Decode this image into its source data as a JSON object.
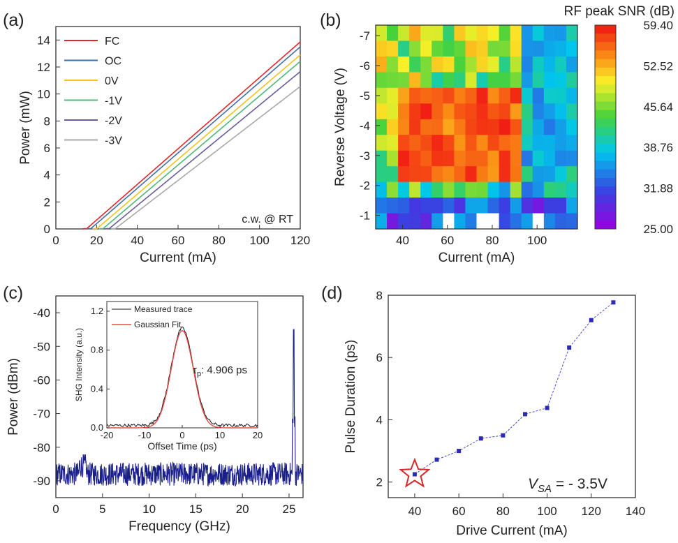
{
  "chart_data": [
    {
      "panel": "(a)",
      "type": "line",
      "xlabel": "Current (mA)",
      "ylabel": "Power (mW)",
      "xlim": [
        0,
        120
      ],
      "ylim": [
        0,
        15
      ],
      "xticks": [
        0,
        20,
        40,
        60,
        80,
        100,
        120
      ],
      "yticks": [
        0,
        2,
        4,
        6,
        8,
        10,
        12,
        14
      ],
      "annotation": "c.w. @ RT",
      "series": [
        {
          "name": "FC",
          "color": "#e8232a",
          "threshold": 15,
          "slope": 0.132
        },
        {
          "name": "OC",
          "color": "#3f6fa8",
          "threshold": 17,
          "slope": 0.131
        },
        {
          "name": "0V",
          "color": "#f2c21b",
          "threshold": 20,
          "slope": 0.129
        },
        {
          "name": "-1V",
          "color": "#4db878",
          "threshold": 23,
          "slope": 0.128
        },
        {
          "name": "-2V",
          "color": "#6b5b9e",
          "threshold": 26,
          "slope": 0.124
        },
        {
          "name": "-3V",
          "color": "#a8a8a8",
          "threshold": 29,
          "slope": 0.116
        }
      ]
    },
    {
      "panel": "(b)",
      "type": "heatmap",
      "title": "RF peak SNR (dB)",
      "xlabel": "Current (mA)",
      "ylabel": "Reverse Voltage (V)",
      "xticks": [
        40,
        60,
        80,
        100
      ],
      "xrange": [
        28,
        118
      ],
      "yticks": [
        -1,
        -2,
        -3,
        -4,
        -5,
        -6,
        -7
      ],
      "yrange": [
        -0.55,
        -7.35
      ],
      "colorbar": {
        "min": 25.0,
        "max": 59.4,
        "ticks": [
          "59.40",
          "52.52",
          "45.64",
          "38.76",
          "31.88",
          "25.00"
        ]
      }
    },
    {
      "panel": "(c)",
      "type": "line",
      "xlabel": "Frequency (GHz)",
      "ylabel": "Power (dBm)",
      "xlim": [
        0,
        26.5
      ],
      "ylim": [
        -95,
        -35
      ],
      "xticks": [
        0,
        5,
        10,
        15,
        20,
        25
      ],
      "yticks": [
        -40,
        -50,
        -60,
        -70,
        -80,
        -90
      ],
      "noise_floor_dBm": -88,
      "peak": {
        "x": 25.5,
        "y": -45
      },
      "inset": {
        "xlabel": "Offset Time (ps)",
        "ylabel": "SHG Intensity (a.u.)",
        "xlim": [
          -20,
          20
        ],
        "ylim": [
          0,
          1.3
        ],
        "xticks": [
          -20,
          -10,
          0,
          10,
          20
        ],
        "yticks": [
          "0.0",
          "0.4",
          "0.8",
          "1.2"
        ],
        "legend": [
          "Measured trace",
          "Gaussian Fit"
        ],
        "annotation_prefix": "τ",
        "annotation_sub": "p",
        "annotation_value": ": 4.906 ps",
        "fwhm_ps": 6.9
      }
    },
    {
      "panel": "(d)",
      "type": "line",
      "xlabel": "Drive Current (mA)",
      "ylabel": "Pulse Duration (ps)",
      "xlim": [
        28,
        140
      ],
      "ylim": [
        1.5,
        8
      ],
      "xticks": [
        40,
        60,
        80,
        100,
        120,
        140
      ],
      "yticks": [
        2,
        4,
        6,
        8
      ],
      "x": [
        40,
        50,
        60,
        70,
        80,
        90,
        100,
        110,
        120,
        130
      ],
      "y": [
        2.25,
        2.72,
        3.0,
        3.4,
        3.5,
        4.18,
        4.38,
        6.32,
        7.2,
        7.77
      ],
      "annotation_main": "V",
      "annotation_sub": "SA",
      "annotation_rest": " = - 3.5V",
      "highlight_x": 40
    }
  ]
}
